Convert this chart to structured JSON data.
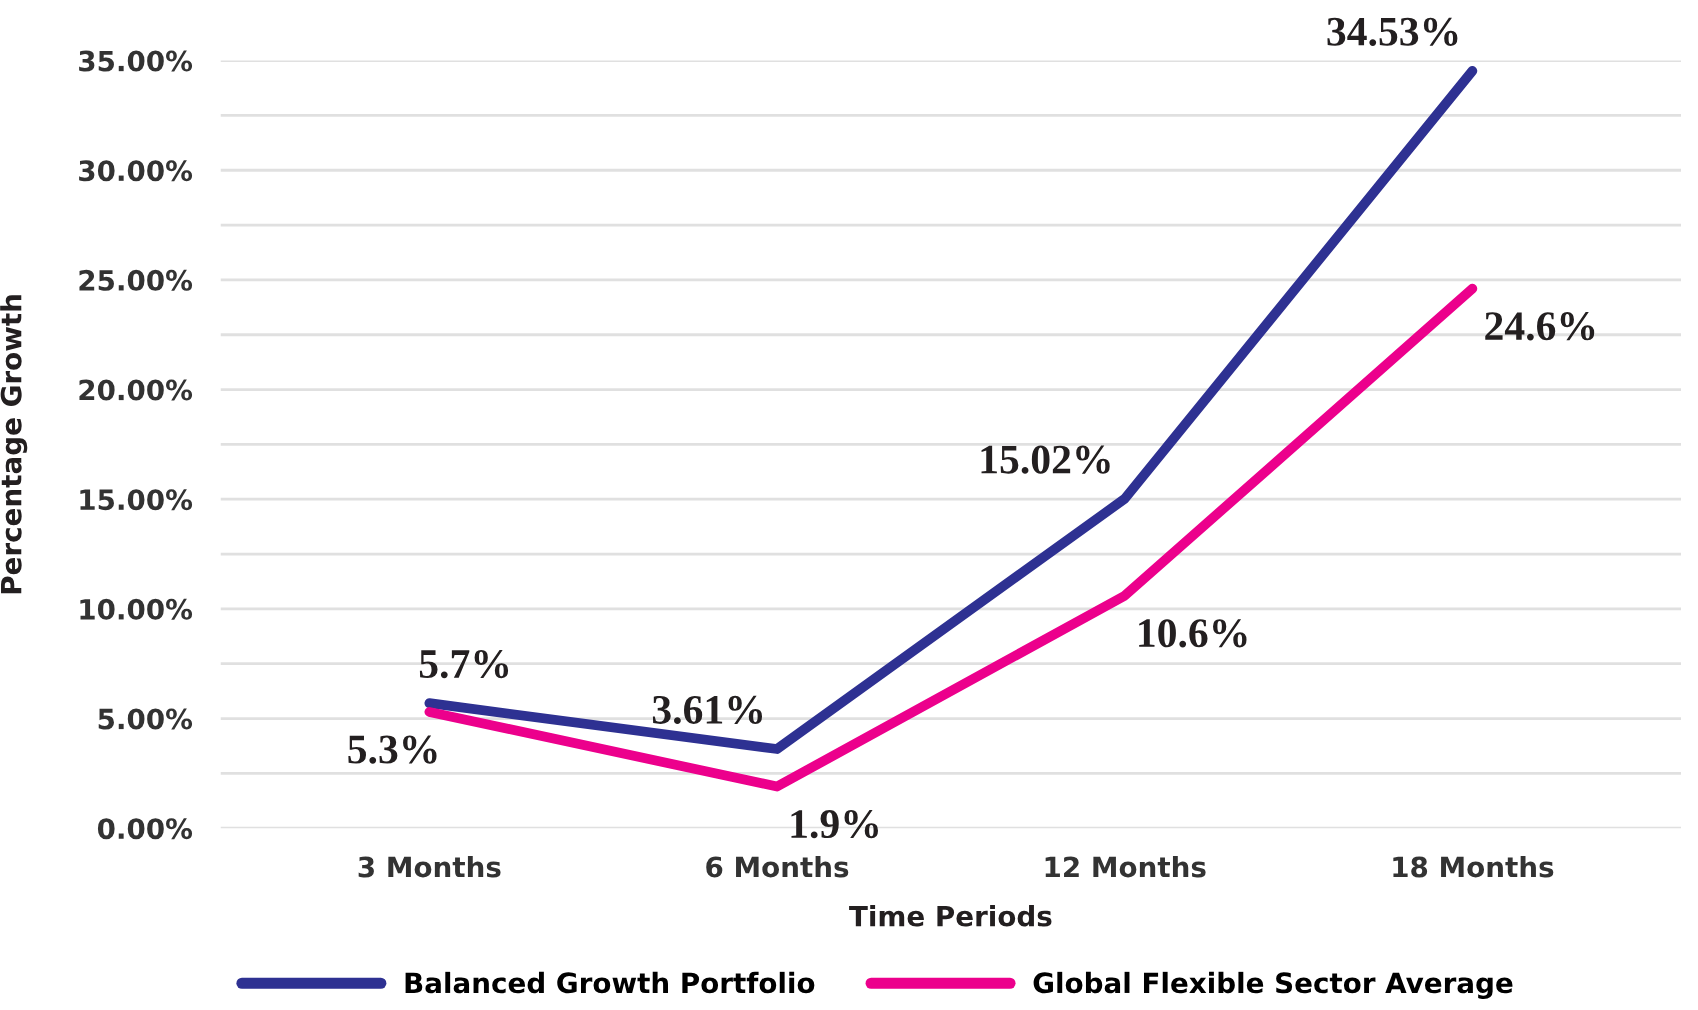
{
  "chart_data": {
    "type": "line",
    "xlabel": "Time Periods",
    "ylabel": "Percentage Growth",
    "categories": [
      "3 Months",
      "6 Months",
      "12 Months",
      "18 Months"
    ],
    "series": [
      {
        "name": "Balanced Growth Portfolio",
        "color": "#2e3192",
        "values": [
          5.7,
          3.61,
          15.02,
          34.53
        ],
        "value_labels": [
          "5.7%",
          "3.61%",
          "15.02%",
          "34.53%"
        ]
      },
      {
        "name": "Global Flexible Sector Average",
        "color": "#ec008c",
        "values": [
          5.3,
          1.9,
          10.6,
          24.6
        ],
        "value_labels": [
          "5.3%",
          "1.9%",
          "10.6%",
          "24.6%"
        ]
      }
    ],
    "ylim": [
      0,
      35
    ],
    "yticks": [
      {
        "value": 0,
        "label": "0.00%"
      },
      {
        "value": 2.5,
        "label": null
      },
      {
        "value": 5,
        "label": "5.00%"
      },
      {
        "value": 7.5,
        "label": null
      },
      {
        "value": 10,
        "label": "10.00%"
      },
      {
        "value": 12.5,
        "label": null
      },
      {
        "value": 15,
        "label": "15.00%"
      },
      {
        "value": 17.5,
        "label": null
      },
      {
        "value": 20,
        "label": "20.00%"
      },
      {
        "value": 22.5,
        "label": null
      },
      {
        "value": 25,
        "label": "25.00%"
      },
      {
        "value": 27.5,
        "label": null
      },
      {
        "value": 30,
        "label": "30.00%"
      },
      {
        "value": 32.5,
        "label": null
      },
      {
        "value": 35,
        "label": "35.00%"
      }
    ],
    "grid": "y",
    "legend": "bottom",
    "marker": "none",
    "line_style": "solid"
  }
}
